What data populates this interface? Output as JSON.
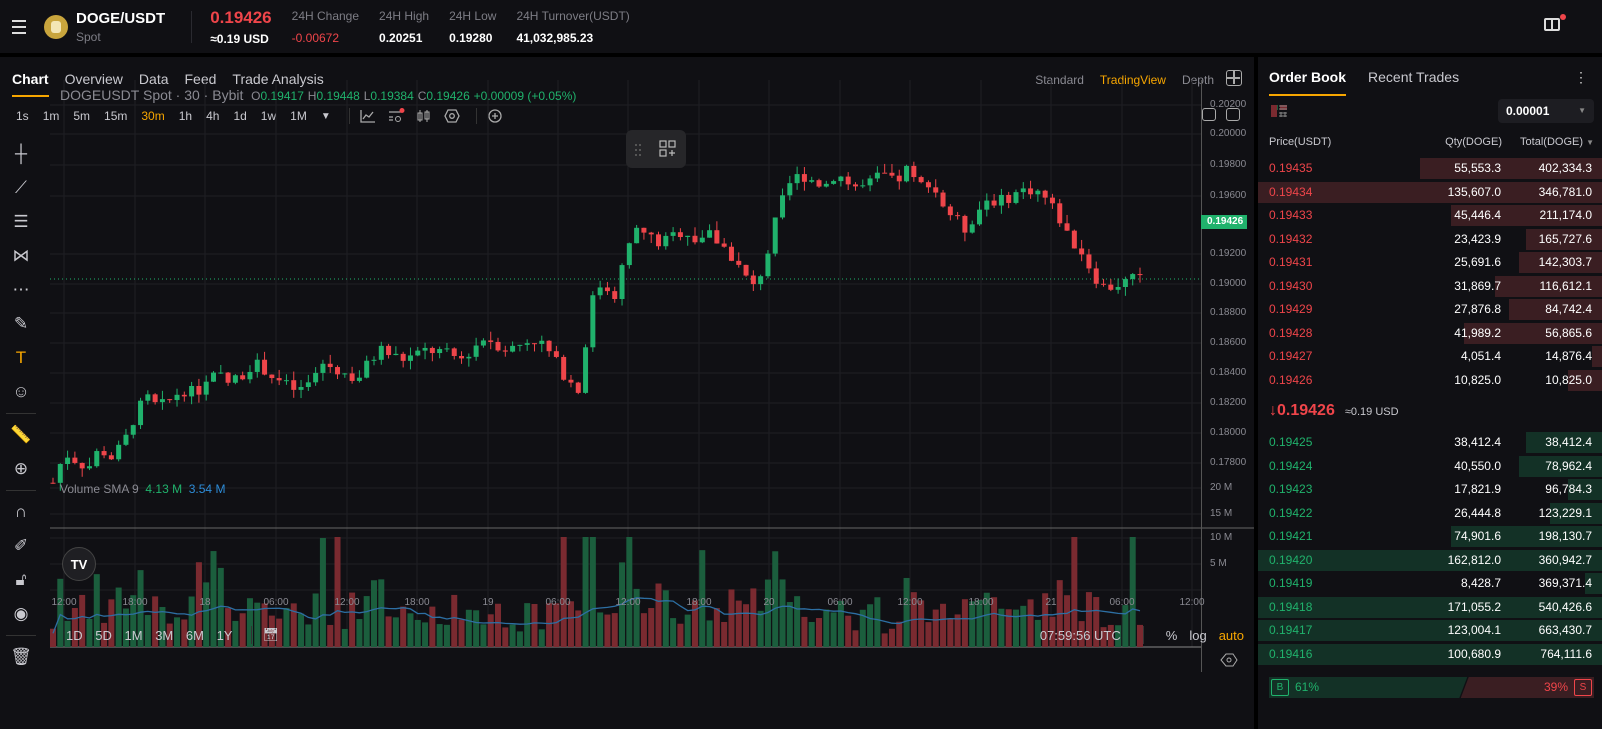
{
  "header": {
    "pair": "DOGE/USDT",
    "market": "Spot",
    "last_price": "0.19426",
    "last_price_usd": "≈0.19 USD",
    "stats": [
      {
        "label": "24H Change",
        "value": "-0.00672",
        "negative": true
      },
      {
        "label": "24H High",
        "value": "0.20251"
      },
      {
        "label": "24H Low",
        "value": "0.19280"
      },
      {
        "label": "24H Turnover(USDT)",
        "value": "41,032,985.23"
      }
    ]
  },
  "chart_tabs": [
    "Chart",
    "Overview",
    "Data",
    "Feed",
    "Trade Analysis"
  ],
  "chart_modes": [
    "Standard",
    "TradingView",
    "Depth"
  ],
  "active_mode": "TradingView",
  "timeframes": [
    "1s",
    "1m",
    "5m",
    "15m",
    "30m",
    "1h",
    "4h",
    "1d",
    "1w",
    "1M"
  ],
  "active_timeframe": "30m",
  "legend": {
    "symbol": "DOGEUSDT Spot · 30 · Bybit",
    "o": "0.19417",
    "h": "0.19448",
    "l": "0.19384",
    "c": "0.19426",
    "change": "+0.00009 (+0.05%)"
  },
  "volume_legend": {
    "label": "Volume SMA 9",
    "v1": "4.13 M",
    "v2": "3.54 M"
  },
  "y_ticks": [
    "0.20200",
    "0.20000",
    "0.19800",
    "0.19600",
    "0.19426",
    "0.19200",
    "0.19000",
    "0.18800",
    "0.18600",
    "0.18400",
    "0.18200",
    "0.18000",
    "0.17800"
  ],
  "vol_ticks": [
    "20 M",
    "15 M",
    "10 M",
    "5 M"
  ],
  "x_ticks": [
    "12:00",
    "18:00",
    "18",
    "06:00",
    "12:00",
    "18:00",
    "19",
    "06:00",
    "12:00",
    "18:00",
    "20",
    "06:00",
    "12:00",
    "18:00",
    "21",
    "06:00",
    "12:00"
  ],
  "ranges": [
    "1D",
    "5D",
    "1M",
    "3M",
    "6M",
    "1Y"
  ],
  "clock": "07:59:56 UTC",
  "scale_opts": {
    "pct": "%",
    "log": "log",
    "auto": "auto"
  },
  "logo": "TV",
  "order_book": {
    "tabs": [
      "Order Book",
      "Recent Trades"
    ],
    "precision": "0.00001",
    "headers": {
      "price": "Price(USDT)",
      "qty": "Qty(DOGE)",
      "total": "Total(DOGE)"
    },
    "asks": [
      {
        "price": "0.19435",
        "qty": "55,553.3",
        "total": "402,334.3",
        "depth": 0.53
      },
      {
        "price": "0.19434",
        "qty": "135,607.0",
        "total": "346,781.0",
        "depth": 1.0
      },
      {
        "price": "0.19433",
        "qty": "45,446.4",
        "total": "211,174.0",
        "depth": 0.44
      },
      {
        "price": "0.19432",
        "qty": "23,423.9",
        "total": "165,727.6",
        "depth": 0.22
      },
      {
        "price": "0.19431",
        "qty": "25,691.6",
        "total": "142,303.7",
        "depth": 0.24
      },
      {
        "price": "0.19430",
        "qty": "31,869.7",
        "total": "116,612.1",
        "depth": 0.31
      },
      {
        "price": "0.19429",
        "qty": "27,876.8",
        "total": "84,742.4",
        "depth": 0.27
      },
      {
        "price": "0.19428",
        "qty": "41,989.2",
        "total": "56,865.6",
        "depth": 0.4
      },
      {
        "price": "0.19427",
        "qty": "4,051.4",
        "total": "14,876.4",
        "depth": 0.03
      },
      {
        "price": "0.19426",
        "qty": "10,825.0",
        "total": "10,825.0",
        "depth": 0.1
      }
    ],
    "mid_price": "0.19426",
    "mid_usd": "≈0.19 USD",
    "bids": [
      {
        "price": "0.19425",
        "qty": "38,412.4",
        "total": "38,412.4",
        "depth": 0.22
      },
      {
        "price": "0.19424",
        "qty": "40,550.0",
        "total": "78,962.4",
        "depth": 0.24
      },
      {
        "price": "0.19423",
        "qty": "17,821.9",
        "total": "96,784.3",
        "depth": 0.1
      },
      {
        "price": "0.19422",
        "qty": "26,444.8",
        "total": "123,229.1",
        "depth": 0.15
      },
      {
        "price": "0.19421",
        "qty": "74,901.6",
        "total": "198,130.7",
        "depth": 0.44
      },
      {
        "price": "0.19420",
        "qty": "162,812.0",
        "total": "360,942.7",
        "depth": 1.0
      },
      {
        "price": "0.19419",
        "qty": "8,428.7",
        "total": "369,371.4",
        "depth": 0.05
      },
      {
        "price": "0.19418",
        "qty": "171,055.2",
        "total": "540,426.6",
        "depth": 1.0
      },
      {
        "price": "0.19417",
        "qty": "123,004.1",
        "total": "663,430.7",
        "depth": 1.0
      },
      {
        "price": "0.19416",
        "qty": "100,680.9",
        "total": "764,111.6",
        "depth": 1.0
      }
    ],
    "buy_pct": "61%",
    "sell_pct": "39%",
    "buy_label": "B",
    "sell_label": "S"
  },
  "colors": {
    "up": "#20b26c",
    "down": "#ef454a",
    "accent": "#f7a600",
    "vol_up": "#1b5e3d",
    "vol_down": "#7a2a30",
    "sma": "#2d6fa3"
  },
  "chart_data": {
    "type": "candlestick",
    "title": "DOGEUSDT Spot · 30 · Bybit",
    "y_range": [
      0.1776,
      0.2026
    ],
    "close_path": [
      0.1805,
      0.1825,
      0.182,
      0.1815,
      0.1828,
      0.1822,
      0.183,
      0.185,
      0.1862,
      0.1855,
      0.186,
      0.1868,
      0.1865,
      0.187,
      0.1878,
      0.1872,
      0.1876,
      0.1885,
      0.1882,
      0.1875,
      0.187,
      0.1866,
      0.1872,
      0.1885,
      0.1882,
      0.1878,
      0.1874,
      0.1885,
      0.1895,
      0.189,
      0.1888,
      0.189,
      0.1894,
      0.1893,
      0.189,
      0.1888,
      0.1896,
      0.1903,
      0.1898,
      0.1894,
      0.1898,
      0.1902,
      0.1897,
      0.1886,
      0.1875,
      0.1866,
      0.1925,
      0.194,
      0.193,
      0.1958,
      0.1975,
      0.197,
      0.1965,
      0.197,
      0.1975,
      0.1968,
      0.1972,
      0.1966,
      0.1958,
      0.1945,
      0.1935,
      0.1955,
      0.1985,
      0.2005,
      0.2012,
      0.2008,
      0.2004,
      0.2013,
      0.2006,
      0.2002,
      0.2006,
      0.2012,
      0.2005,
      0.2015,
      0.2003,
      0.2008,
      0.1993,
      0.1983,
      0.1975,
      0.1986,
      0.1996,
      0.1993,
      0.1998,
      0.2001,
      0.2002,
      0.1995,
      0.1984,
      0.1968,
      0.196,
      0.1945,
      0.1935,
      0.1938,
      0.194,
      0.1943
    ],
    "volume_note": "Volume SMA 9 values 4.13M / 3.54M"
  }
}
